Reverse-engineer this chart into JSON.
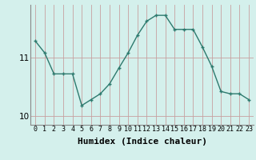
{
  "x": [
    0,
    1,
    2,
    3,
    4,
    5,
    6,
    7,
    8,
    9,
    10,
    11,
    12,
    13,
    14,
    15,
    16,
    17,
    18,
    19,
    20,
    21,
    22,
    23
  ],
  "y": [
    11.28,
    11.08,
    10.72,
    10.72,
    10.72,
    10.18,
    10.28,
    10.38,
    10.55,
    10.82,
    11.08,
    11.38,
    11.62,
    11.72,
    11.72,
    11.48,
    11.48,
    11.48,
    11.18,
    10.85,
    10.42,
    10.38,
    10.38,
    10.28
  ],
  "line_color": "#2d7a6e",
  "marker": "+",
  "markersize": 3.5,
  "linewidth": 1.0,
  "grid_color": "#b8ddd8",
  "xlabel": "Humidex (Indice chaleur)",
  "xlabel_fontsize": 8,
  "ytick_fontsize": 7.5,
  "xtick_fontsize": 6,
  "yticks": [
    10,
    11
  ],
  "ylim": [
    9.85,
    11.9
  ],
  "xlim": [
    -0.5,
    23.5
  ],
  "fig_bg": "#d4f0ec",
  "axes_bg": "#d4f0ec"
}
